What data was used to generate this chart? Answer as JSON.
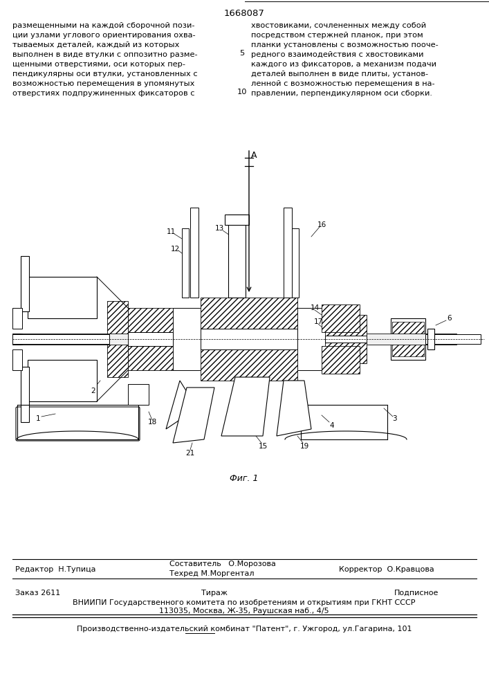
{
  "patent_number": "1668087",
  "bg_color": "#ffffff",
  "text_color": "#000000",
  "fig_label": "Фиг. 1",
  "left_column_text": "размещенными на каждой сборочной пози-\nции узлами углового ориентирования охва-\nтываемых деталей, каждый из которых\nвыполнен в виде втулки с оппозитно разме-\nщенными отверстиями, оси которых пер-\nпендикулярны оси втулки, установленных с\nвозможностью перемещения в упомянутых\nотверстиях подпружиненных фиксаторов с",
  "right_column_text": "хвостовиками, сочлененных между собой\nпосредством стержней планок, при этом\nпланки установлены с возможностью пооче-\nредного взаимодействия с хвостовиками\nкаждого из фиксаторов, а механизм подачи\nдеталей выполнен в виде плиты, установ-\nленной с возможностью перемещения в на-\nправлении, перпендикулярном оси сборки.",
  "line_number_5": "5",
  "line_number_10": "10",
  "editor_label": "Редактор  Н.Тупица",
  "composer_label": "Составитель   О.Морозова",
  "techred_label": "Техред М.Моргентал",
  "corrector_label": "Корректор  О.Кравцова",
  "order_label": "Заказ 2611",
  "tirazh_label": "Тираж",
  "podpisnoe_label": "Подписное",
  "vniipie_line1": "ВНИИПИ Государственного комитета по изобретениям и открытиям при ГКНТ СССР",
  "vniipie_line2": "113035, Москва, Ж-35, Раушская наб., 4/5",
  "publisher_line": "Производственно-издательский комбинат \"Патент\", г. Ужгород, ул.Гагарина, 101"
}
